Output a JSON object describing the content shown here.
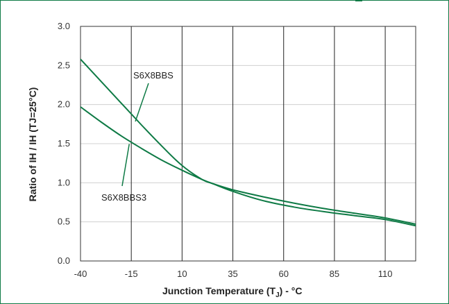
{
  "chart_data": {
    "type": "line",
    "xlabel": "Junction Temperature (T",
    "xlabel_sub": "J",
    "xlabel_tail": ") - °C",
    "ylabel": "Ratio of IH / IH (TJ=25°C)",
    "xlim": [
      -40,
      125
    ],
    "ylim": [
      0,
      3.0
    ],
    "x_ticks": [
      -40,
      -15,
      10,
      35,
      60,
      85,
      110
    ],
    "x_tick_labels": [
      "-40",
      "-15",
      "10",
      "35",
      "60",
      "85",
      "110"
    ],
    "y_ticks": [
      0,
      0.5,
      1.0,
      1.5,
      2.0,
      2.5,
      3.0
    ],
    "y_tick_labels": [
      "0.0",
      "0.5",
      "1.0",
      "1.5",
      "2.0",
      "2.5",
      "3.0"
    ],
    "vertical_grid": true,
    "horizontal_grid": true,
    "line_color": "#0e7a45",
    "series": [
      {
        "name": "S6X8BBS",
        "x": [
          -40,
          -30,
          -20,
          -10,
          0,
          10,
          20,
          25,
          35,
          50,
          65,
          80,
          95,
          110,
          125
        ],
        "y": [
          2.58,
          2.3,
          2.02,
          1.74,
          1.47,
          1.22,
          1.04,
          0.99,
          0.89,
          0.77,
          0.69,
          0.63,
          0.58,
          0.53,
          0.45
        ]
      },
      {
        "name": "S6X8BBS3",
        "x": [
          -40,
          -30,
          -20,
          -10,
          0,
          10,
          20,
          25,
          35,
          50,
          65,
          80,
          95,
          110,
          125
        ],
        "y": [
          1.97,
          1.78,
          1.6,
          1.44,
          1.29,
          1.16,
          1.04,
          0.99,
          0.91,
          0.82,
          0.74,
          0.67,
          0.61,
          0.55,
          0.47
        ]
      }
    ]
  }
}
